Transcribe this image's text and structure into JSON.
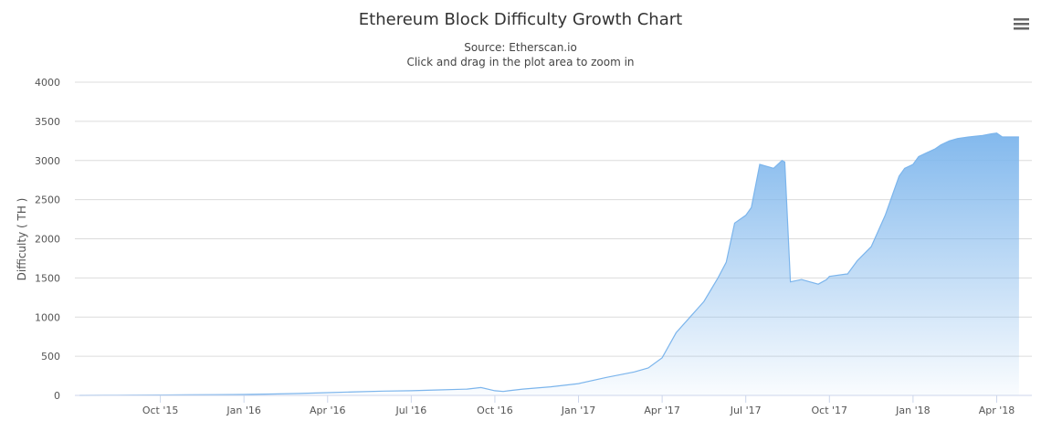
{
  "chart_data": {
    "type": "area",
    "title": "Ethereum Block Difficulty Growth Chart",
    "subtitle": "Source: Etherscan.io",
    "subtitle2": "Click and drag in the plot area to zoom in",
    "xlabel": "",
    "ylabel": "Difficulty ( TH )",
    "ylim": [
      0,
      4000
    ],
    "yticks": [
      "0",
      "500",
      "1000",
      "1500",
      "2000",
      "2500",
      "3000",
      "3500",
      "4000"
    ],
    "xticks": [
      "Oct '15",
      "Jan '16",
      "Apr '16",
      "Jul '16",
      "Oct '16",
      "Jan '17",
      "Apr '17",
      "Jul '17",
      "Oct '17",
      "Jan '18",
      "Apr '18"
    ],
    "x_start": "Jul '15",
    "grid": true,
    "legend": "none",
    "menu_icon": "hamburger-menu-icon",
    "series": [
      {
        "name": "Difficulty",
        "color": "#7cb5ec",
        "x_months": [
          0.1,
          1,
          2,
          3,
          4,
          5,
          6,
          7,
          8,
          9,
          10,
          11,
          12,
          13,
          14,
          14.5,
          15,
          15.3,
          15.5,
          16,
          16.5,
          17,
          18,
          19,
          20,
          20.5,
          21,
          21.5,
          22,
          22.5,
          23,
          23.3,
          23.6,
          24,
          24.2,
          24.5,
          25,
          25.3,
          25.4,
          25.6,
          26,
          26.3,
          26.6,
          26.9,
          27,
          27.6,
          27.65,
          28,
          28.5,
          29,
          29.2,
          29.5,
          29.7,
          30,
          30.2,
          30.5,
          30.8,
          31,
          31.3,
          31.6,
          32,
          32.5,
          32.8,
          33,
          33.2,
          33.25,
          33.8
        ],
        "values": [
          0.5,
          1.5,
          3,
          5,
          7,
          9,
          12,
          18,
          25,
          35,
          45,
          55,
          60,
          70,
          80,
          100,
          60,
          50,
          60,
          80,
          95,
          110,
          150,
          230,
          300,
          350,
          480,
          800,
          1000,
          1200,
          1500,
          1700,
          2200,
          2300,
          2400,
          2950,
          2900,
          3000,
          2980,
          1450,
          1480,
          1450,
          1420,
          1480,
          1520,
          1550,
          1550,
          1720,
          1900,
          2300,
          2500,
          2800,
          2900,
          2950,
          3050,
          3100,
          3150,
          3200,
          3250,
          3280,
          3300,
          3320,
          3340,
          3350,
          3300,
          3300,
          3300
        ]
      }
    ]
  }
}
